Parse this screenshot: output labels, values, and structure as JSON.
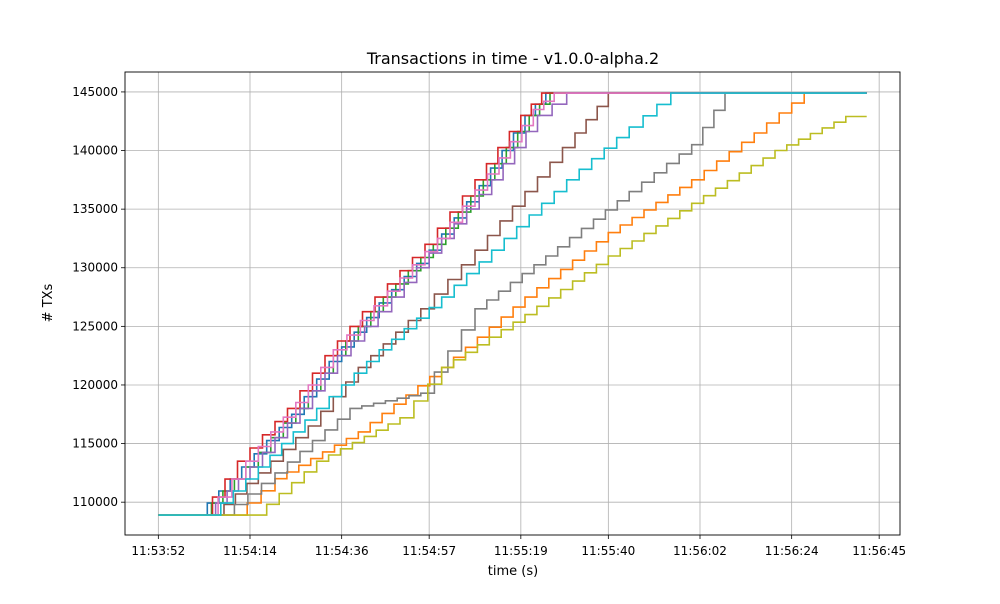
{
  "chart_data": {
    "type": "line",
    "title": "Transactions in time  -  v1.0.0-alpha.2",
    "xlabel": "time (s)",
    "ylabel": "# TXs",
    "x_ticks": [
      "11:53:52",
      "11:54:14",
      "11:54:36",
      "11:54:57",
      "11:55:19",
      "11:55:40",
      "11:56:02",
      "11:56:24",
      "11:56:45"
    ],
    "y_ticks": [
      110000,
      115000,
      120000,
      125000,
      130000,
      135000,
      140000,
      145000
    ],
    "xlim": [
      "11:53:44",
      "11:56:50"
    ],
    "ylim": [
      107200,
      146700
    ],
    "grid": true,
    "legend": "none",
    "series": [
      {
        "color": "#1f77b4",
        "points": [
          [
            "11:53:52",
            108900
          ],
          [
            "11:54:01",
            108900
          ],
          [
            "11:54:12",
            113000
          ],
          [
            "11:54:24",
            117500
          ],
          [
            "11:54:33",
            122000
          ],
          [
            "11:54:45",
            127000
          ],
          [
            "11:54:57",
            131500
          ],
          [
            "11:55:09",
            137000
          ],
          [
            "11:55:20",
            143000
          ],
          [
            "11:55:25",
            144900
          ],
          [
            "11:56:42",
            144900
          ]
        ]
      },
      {
        "color": "#ff7f0e",
        "points": [
          [
            "11:53:52",
            108900
          ],
          [
            "11:54:10",
            108900
          ],
          [
            "11:54:20",
            112000
          ],
          [
            "11:54:40",
            116000
          ],
          [
            "11:55:00",
            121500
          ],
          [
            "11:55:20",
            127500
          ],
          [
            "11:55:40",
            133000
          ],
          [
            "11:56:00",
            137500
          ],
          [
            "11:56:15",
            141500
          ],
          [
            "11:56:27",
            144900
          ],
          [
            "11:56:42",
            144900
          ]
        ]
      },
      {
        "color": "#2ca02c",
        "points": [
          [
            "11:53:52",
            108900
          ],
          [
            "11:54:02",
            108900
          ],
          [
            "11:54:13",
            113000
          ],
          [
            "11:54:25",
            118000
          ],
          [
            "11:54:34",
            122500
          ],
          [
            "11:54:46",
            127500
          ],
          [
            "11:54:58",
            132000
          ],
          [
            "11:55:10",
            137500
          ],
          [
            "11:55:21",
            143000
          ],
          [
            "11:55:26",
            144900
          ],
          [
            "11:56:42",
            144900
          ]
        ]
      },
      {
        "color": "#d62728",
        "points": [
          [
            "11:53:52",
            108900
          ],
          [
            "11:54:02",
            108900
          ],
          [
            "11:54:11",
            113500
          ],
          [
            "11:54:23",
            118000
          ],
          [
            "11:54:32",
            122500
          ],
          [
            "11:54:44",
            127500
          ],
          [
            "11:54:56",
            132000
          ],
          [
            "11:55:08",
            137500
          ],
          [
            "11:55:19",
            143000
          ],
          [
            "11:55:24",
            144900
          ],
          [
            "11:56:42",
            144900
          ]
        ]
      },
      {
        "color": "#9467bd",
        "points": [
          [
            "11:53:52",
            108900
          ],
          [
            "11:54:03",
            108900
          ],
          [
            "11:54:14",
            113000
          ],
          [
            "11:54:26",
            118000
          ],
          [
            "11:54:35",
            122500
          ],
          [
            "11:54:48",
            127500
          ],
          [
            "11:55:00",
            132500
          ],
          [
            "11:55:12",
            137500
          ],
          [
            "11:55:23",
            143000
          ],
          [
            "11:55:30",
            144900
          ],
          [
            "11:56:42",
            144900
          ]
        ]
      },
      {
        "color": "#8c564b",
        "points": [
          [
            "11:53:52",
            108900
          ],
          [
            "11:54:05",
            108900
          ],
          [
            "11:54:16",
            112500
          ],
          [
            "11:54:28",
            116500
          ],
          [
            "11:54:40",
            121500
          ],
          [
            "11:54:55",
            126500
          ],
          [
            "11:55:08",
            131500
          ],
          [
            "11:55:20",
            136500
          ],
          [
            "11:55:32",
            141500
          ],
          [
            "11:55:40",
            144900
          ],
          [
            "11:56:42",
            144900
          ]
        ]
      },
      {
        "color": "#e377c2",
        "points": [
          [
            "11:53:52",
            108900
          ],
          [
            "11:54:03",
            108900
          ],
          [
            "11:54:13",
            113500
          ],
          [
            "11:54:25",
            118500
          ],
          [
            "11:54:34",
            123000
          ],
          [
            "11:54:47",
            128000
          ],
          [
            "11:54:59",
            132500
          ],
          [
            "11:55:11",
            138000
          ],
          [
            "11:55:22",
            143500
          ],
          [
            "11:55:27",
            144900
          ],
          [
            "11:56:42",
            144900
          ]
        ]
      },
      {
        "color": "#7f7f7f",
        "points": [
          [
            "11:53:52",
            108900
          ],
          [
            "11:54:07",
            108900
          ],
          [
            "11:54:20",
            112500
          ],
          [
            "11:54:38",
            118000
          ],
          [
            "11:54:55",
            119300
          ],
          [
            "11:55:08",
            126500
          ],
          [
            "11:55:25",
            131000
          ],
          [
            "11:55:45",
            136500
          ],
          [
            "11:56:00",
            140500
          ],
          [
            "11:56:08",
            144900
          ],
          [
            "11:56:42",
            144900
          ]
        ]
      },
      {
        "color": "#bcbd22",
        "points": [
          [
            "11:53:52",
            108900
          ],
          [
            "11:54:15",
            108900
          ],
          [
            "11:54:30",
            113500
          ],
          [
            "11:54:50",
            117200
          ],
          [
            "11:55:00",
            121500
          ],
          [
            "11:55:20",
            126000
          ],
          [
            "11:55:40",
            131000
          ],
          [
            "11:56:00",
            135500
          ],
          [
            "11:56:20",
            140000
          ],
          [
            "11:56:37",
            142900
          ],
          [
            "11:56:42",
            142900
          ]
        ]
      },
      {
        "color": "#17becf",
        "points": [
          [
            "11:53:52",
            108900
          ],
          [
            "11:54:04",
            108900
          ],
          [
            "11:54:16",
            113000
          ],
          [
            "11:54:30",
            118000
          ],
          [
            "11:54:45",
            123000
          ],
          [
            "11:55:00",
            127500
          ],
          [
            "11:55:15",
            132500
          ],
          [
            "11:55:30",
            137500
          ],
          [
            "11:55:45",
            142000
          ],
          [
            "11:55:55",
            144900
          ],
          [
            "11:56:42",
            144900
          ]
        ]
      }
    ]
  }
}
